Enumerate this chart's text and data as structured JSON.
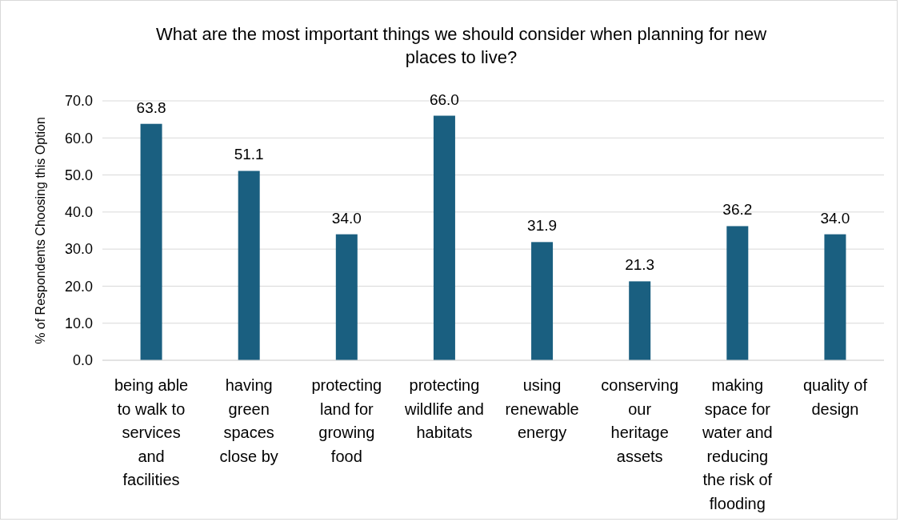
{
  "chart_data": {
    "type": "bar",
    "title": "What are the most important things we should consider when planning for new places to live?",
    "ylabel": "% of Respondents Choosing this Option",
    "categories": [
      "being able to walk to services and facilities",
      "having green spaces close by",
      "protecting land for growing food",
      "protecting wildlife and habitats",
      "using renewable energy",
      "conserving our heritage assets",
      "making space for water and reducing the risk of flooding",
      "quality of design"
    ],
    "values": [
      63.8,
      51.1,
      34.0,
      66.0,
      31.9,
      21.3,
      36.2,
      34.0
    ],
    "value_labels": [
      "63.8",
      "51.1",
      "34.0",
      "66.0",
      "31.9",
      "21.3",
      "36.2",
      "34.0"
    ],
    "color": "#1a5f80",
    "ylim": [
      0,
      70
    ],
    "yticks": [
      {
        "value": 0,
        "label": "0.0"
      },
      {
        "value": 10,
        "label": "10.0"
      },
      {
        "value": 20,
        "label": "20.0"
      },
      {
        "value": 30,
        "label": "30.0"
      },
      {
        "value": 40,
        "label": "40.0"
      },
      {
        "value": 50,
        "label": "50.0"
      },
      {
        "value": 60,
        "label": "60.0"
      },
      {
        "value": 70,
        "label": "70.0"
      }
    ],
    "grid": "y"
  }
}
